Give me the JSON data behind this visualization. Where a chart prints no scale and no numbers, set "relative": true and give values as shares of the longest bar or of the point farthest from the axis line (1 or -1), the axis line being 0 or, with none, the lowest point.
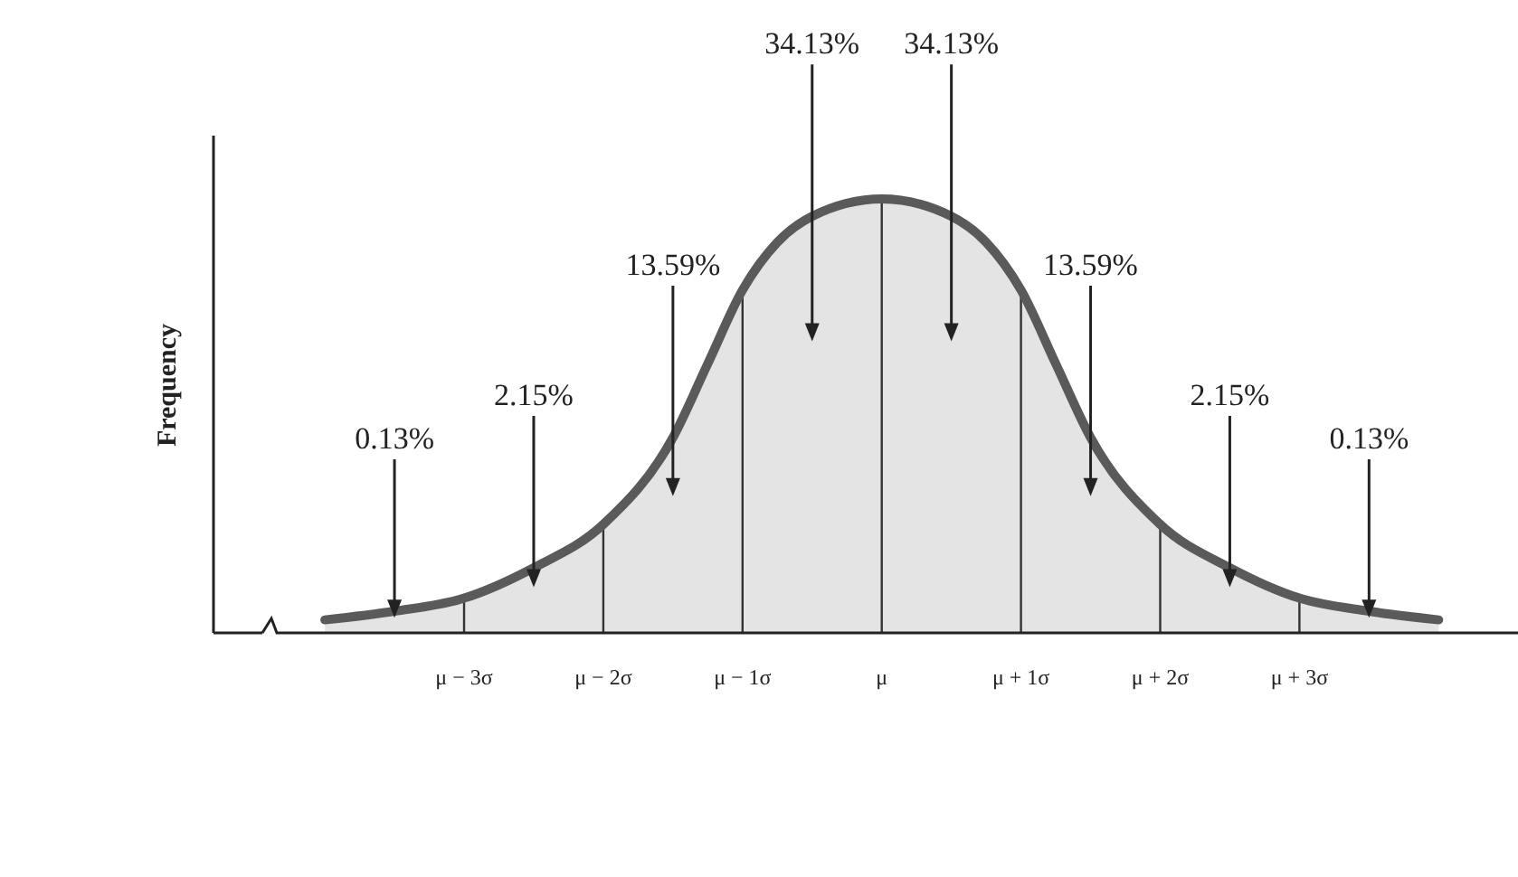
{
  "chart_data": {
    "type": "area",
    "relative": true,
    "ylabel": "Frequency",
    "x": [
      -4,
      -3.5,
      -3,
      -2.5,
      -2,
      -1.5,
      -1.25,
      -1,
      -0.75,
      -0.5,
      0,
      0.5,
      0.75,
      1,
      1.25,
      1.5,
      2,
      2.5,
      3,
      3.5,
      4
    ],
    "series": [
      {
        "color": "#5a5a5a",
        "values": [
          0.03,
          0.05,
          0.08,
          0.15,
          0.25,
          0.45,
          0.62,
          0.79,
          0.9,
          0.96,
          1,
          0.96,
          0.9,
          0.79,
          0.62,
          0.45,
          0.25,
          0.15,
          0.08,
          0.05,
          0.03
        ]
      }
    ],
    "xlim": [
      -4.8,
      4.57
    ],
    "xticks": [
      {
        "value": -3,
        "label": "μ − 3σ"
      },
      {
        "value": -2,
        "label": "μ − 2σ"
      },
      {
        "value": -1,
        "label": "μ − 1σ"
      },
      {
        "value": 0,
        "label": "μ"
      },
      {
        "value": 1,
        "label": "μ + 1σ"
      },
      {
        "value": 2,
        "label": "μ + 2σ"
      },
      {
        "value": 3,
        "label": "μ + 3σ"
      }
    ],
    "grid": "x",
    "annotations": [
      "0.13%",
      "2.15%",
      "13.59%",
      "34.13%",
      "34.13%",
      "13.59%",
      "2.15%",
      "0.13%"
    ]
  }
}
